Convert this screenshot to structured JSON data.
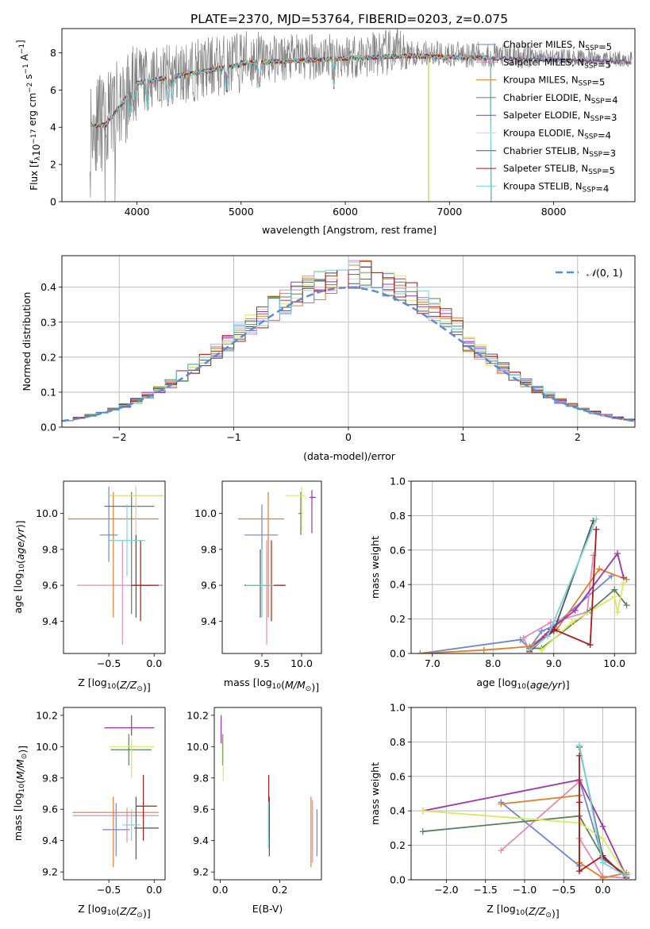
{
  "title": "PLATE=2370, MJD=53764, FIBERID=0203, z=0.075",
  "chart_data": [
    {
      "id": "spectrum",
      "type": "line",
      "xlabel": "wavelength [Angstrom, rest frame]",
      "ylabel": "Flux [f_λ 10^-17 erg cm^-2 s^-1 A^-1]",
      "xlim": [
        3280,
        8780
      ],
      "ylim": [
        0,
        9.3
      ],
      "xticks": [
        4000,
        5000,
        6000,
        7000,
        8000
      ],
      "yticks": [
        0,
        2,
        4,
        6,
        8
      ],
      "grid": false,
      "legend": "top-right",
      "observed": {
        "color": "#808080",
        "x_start": 3550,
        "x_end": 8750,
        "level": 7.8
      },
      "series": [
        {
          "name": "Chabrier MILES, N_SSP=5",
          "color": "#6f86d6",
          "x_end": 8750
        },
        {
          "name": "Salpeter MILES, N_SSP=5",
          "color": "#e28ab8",
          "x_end": 8750
        },
        {
          "name": "Kroupa MILES, N_SSP=5",
          "color": "#e47d25",
          "x_end": 7400
        },
        {
          "name": "Chabrier ELODIE, N_SSP=4",
          "color": "#5b8060",
          "x_end": 6800
        },
        {
          "name": "Salpeter ELODIE, N_SSP=3",
          "color": "#9b34ad",
          "x_end": 6800
        },
        {
          "name": "Kroupa ELODIE, N_SSP=4",
          "color": "#d9ea5a",
          "x_end": 6800
        },
        {
          "name": "Chabrier STELIB, N_SSP=3",
          "color": "#555555",
          "x_end": 8750
        },
        {
          "name": "Salpeter STELIB, N_SSP=5",
          "color": "#b01818",
          "x_end": 7400
        },
        {
          "name": "Kroupa STELIB, N_SSP=4",
          "color": "#77d4dc",
          "x_end": 7400
        }
      ]
    },
    {
      "id": "residuals",
      "type": "step",
      "xlabel": "(data-model)/error",
      "ylabel": "Normed distribution",
      "xlim": [
        -2.5,
        2.5
      ],
      "ylim": [
        0,
        0.49
      ],
      "xticks": [
        -2,
        -1,
        0,
        1,
        2
      ],
      "yticks": [
        0.0,
        0.1,
        0.2,
        0.3,
        0.4
      ],
      "grid": true,
      "legend": "top-right",
      "reference": {
        "name": "N(0,1)",
        "color": "#5b8bd6",
        "style": "dashed"
      },
      "bin_width": 0.1,
      "mean_profile": "gaussian"
    },
    {
      "id": "z-age",
      "type": "errorbar",
      "xlabel": "Z [log10(Z/Z⊙)]",
      "ylabel": "age [log10(age/yr)]",
      "xlim": [
        -1.0,
        0.12
      ],
      "ylim": [
        9.22,
        10.18
      ],
      "xticks": [
        -0.5,
        0.0
      ],
      "yticks": [
        9.4,
        9.6,
        9.8,
        10.0
      ],
      "grid": false,
      "points": [
        {
          "color": "#6f86d6",
          "x": -0.5,
          "xerr": [
            0.1,
            0.1
          ],
          "y": 9.88,
          "yerr": [
            0.15,
            0.27
          ]
        },
        {
          "color": "#e28ab8",
          "x": -0.35,
          "xerr": [
            0.5,
            0.45
          ],
          "y": 9.6,
          "yerr": [
            0.33,
            0.25
          ]
        },
        {
          "color": "#e47d25",
          "x": -0.45,
          "xerr": [
            0.5,
            0.5
          ],
          "y": 9.97,
          "yerr": [
            0.55,
            0.15
          ]
        },
        {
          "color": "#5b8060",
          "x": -0.25,
          "xerr": [
            0.3,
            0.25
          ],
          "y": 10.04,
          "yerr": [
            0.6,
            0.08
          ]
        },
        {
          "color": "#9b34ad",
          "x": -0.2,
          "xerr": [
            0.3,
            0.3
          ],
          "y": 10.1,
          "yerr": [
            0.5,
            0.05
          ]
        },
        {
          "color": "#d9ea5a",
          "x": -0.2,
          "xerr": [
            0.3,
            0.3
          ],
          "y": 10.1,
          "yerr": [
            0.5,
            0.05
          ]
        },
        {
          "color": "#555555",
          "x": -0.2,
          "xerr": [
            0.05,
            0.2
          ],
          "y": 9.6,
          "yerr": [
            0.18,
            0.28
          ]
        },
        {
          "color": "#b01818",
          "x": -0.15,
          "xerr": [
            0.1,
            0.2
          ],
          "y": 9.6,
          "yerr": [
            0.2,
            0.25
          ]
        },
        {
          "color": "#77d4dc",
          "x": -0.3,
          "xerr": [
            0.2,
            0.2
          ],
          "y": 9.85,
          "yerr": [
            0.2,
            0.2
          ]
        }
      ]
    },
    {
      "id": "mass-age",
      "type": "errorbar",
      "xlabel": "mass [log10(M/M⊙)]",
      "ylabel": "",
      "xlim": [
        9.0,
        10.25
      ],
      "ylim": [
        9.22,
        10.18
      ],
      "xticks": [
        9.5,
        10.0
      ],
      "yticks": [
        9.4,
        9.6,
        9.8,
        10.0
      ],
      "grid": false,
      "points": [
        {
          "color": "#6f86d6",
          "x": 9.5,
          "xerr": [
            0.22,
            0.2
          ],
          "y": 9.88,
          "yerr": [
            0.45,
            0.17
          ]
        },
        {
          "color": "#e28ab8",
          "x": 9.56,
          "xerr": [
            0.22,
            0.05
          ],
          "y": 9.6,
          "yerr": [
            0.33,
            0.25
          ]
        },
        {
          "color": "#e47d25",
          "x": 9.58,
          "xerr": [
            0.38,
            0.2
          ],
          "y": 9.97,
          "yerr": [
            0.55,
            0.15
          ]
        },
        {
          "color": "#5b8060",
          "x": 9.99,
          "xerr": [
            0.03,
            0.02
          ],
          "y": 10.0,
          "yerr": [
            0.12,
            0.12
          ]
        },
        {
          "color": "#9b34ad",
          "x": 10.13,
          "xerr": [
            0.03,
            0.05
          ],
          "y": 10.09,
          "yerr": [
            0.2,
            0.04
          ]
        },
        {
          "color": "#d9ea5a",
          "x": 10.0,
          "xerr": [
            0.2,
            0.05
          ],
          "y": 10.1,
          "yerr": [
            0.2,
            0.05
          ]
        },
        {
          "color": "#555555",
          "x": 9.48,
          "xerr": [
            0.2,
            0.3
          ],
          "y": 9.6,
          "yerr": [
            0.18,
            0.2
          ]
        },
        {
          "color": "#b01818",
          "x": 9.62,
          "xerr": [
            0.3,
            0.18
          ],
          "y": 9.6,
          "yerr": [
            0.2,
            0.25
          ]
        },
        {
          "color": "#77d4dc",
          "x": 9.5,
          "xerr": [
            0.2,
            0.15
          ],
          "y": 9.6,
          "yerr": [
            0.18,
            0.2
          ]
        }
      ]
    },
    {
      "id": "weight-age",
      "type": "line",
      "xlabel": "age [log10(age/yr)]",
      "ylabel": "mass weight",
      "xlim": [
        6.65,
        10.35
      ],
      "ylim": [
        0,
        1.0
      ],
      "xticks": [
        7,
        8,
        9,
        10
      ],
      "yticks": [
        0.0,
        0.2,
        0.4,
        0.6,
        0.8,
        1.0
      ],
      "grid": true,
      "series": [
        {
          "color": "#6f86d6",
          "x": [
            6.8,
            8.45,
            8.6,
            8.8,
            9.0,
            9.95
          ],
          "y": [
            0.0,
            0.08,
            0.03,
            0.13,
            0.16,
            0.45
          ]
        },
        {
          "color": "#e28ab8",
          "x": [
            8.6,
            8.5,
            8.95,
            9.55,
            9.65
          ],
          "y": [
            0.02,
            0.09,
            0.18,
            0.24,
            0.57
          ]
        },
        {
          "color": "#e47d25",
          "x": [
            6.8,
            7.85,
            8.6,
            8.85,
            9.05,
            9.75,
            10.2
          ],
          "y": [
            0.0,
            0.02,
            0.04,
            0.1,
            0.14,
            0.49,
            0.43
          ]
        },
        {
          "color": "#5b8060",
          "x": [
            8.6,
            8.8,
            9.6,
            10.0,
            10.2
          ],
          "y": [
            0.03,
            0.03,
            0.25,
            0.37,
            0.28
          ]
        },
        {
          "color": "#9b34ad",
          "x": [
            8.6,
            8.95,
            9.35,
            10.05,
            10.15
          ],
          "y": [
            0.02,
            0.14,
            0.25,
            0.58,
            0.44
          ]
        },
        {
          "color": "#d9ea5a",
          "x": [
            8.8,
            9.3,
            10.0,
            10.05,
            10.15
          ],
          "y": [
            0.02,
            0.18,
            0.33,
            0.24,
            0.41
          ]
        },
        {
          "color": "#555555",
          "x": [
            8.6,
            9.0,
            9.65
          ],
          "y": [
            0.02,
            0.13,
            0.77
          ]
        },
        {
          "color": "#b01818",
          "x": [
            8.6,
            9.0,
            9.6,
            9.7
          ],
          "y": [
            0.01,
            0.14,
            0.05,
            0.72
          ]
        },
        {
          "color": "#77d4dc",
          "x": [
            8.6,
            8.9,
            9.7
          ],
          "y": [
            0.02,
            0.1,
            0.78
          ]
        }
      ]
    },
    {
      "id": "z-mass",
      "type": "errorbar",
      "xlabel": "Z [log10(Z/Z⊙)]",
      "ylabel": "mass [log10(M/M⊙)]",
      "xlim": [
        -1.0,
        0.12
      ],
      "ylim": [
        9.15,
        10.25
      ],
      "xticks": [
        -0.5,
        0.0
      ],
      "yticks": [
        9.2,
        9.4,
        9.6,
        9.8,
        10.0,
        10.2
      ],
      "grid": false,
      "points": [
        {
          "color": "#6f86d6",
          "x": -0.42,
          "xerr": [
            0.15,
            0.15
          ],
          "y": 9.47,
          "yerr": [
            0.17,
            0.17
          ]
        },
        {
          "color": "#e28ab8",
          "x": -0.3,
          "xerr": [
            0.6,
            0.35
          ],
          "y": 9.56,
          "yerr": [
            0.17,
            0.05
          ]
        },
        {
          "color": "#e47d25",
          "x": -0.45,
          "xerr": [
            0.45,
            0.5
          ],
          "y": 9.58,
          "yerr": [
            0.35,
            0.1
          ]
        },
        {
          "color": "#5b8060",
          "x": -0.28,
          "xerr": [
            0.2,
            0.25
          ],
          "y": 9.98,
          "yerr": [
            0.1,
            0.1
          ]
        },
        {
          "color": "#9b34ad",
          "x": -0.25,
          "xerr": [
            0.3,
            0.25
          ],
          "y": 10.12,
          "yerr": [
            0.05,
            0.08
          ]
        },
        {
          "color": "#d9ea5a",
          "x": -0.25,
          "xerr": [
            0.25,
            0.25
          ],
          "y": 10.0,
          "yerr": [
            0.2,
            0.05
          ]
        },
        {
          "color": "#555555",
          "x": -0.2,
          "xerr": [
            0.02,
            0.25
          ],
          "y": 9.48,
          "yerr": [
            0.2,
            0.2
          ]
        },
        {
          "color": "#b01818",
          "x": -0.12,
          "xerr": [
            0.08,
            0.15
          ],
          "y": 9.62,
          "yerr": [
            0.22,
            0.2
          ]
        },
        {
          "color": "#77d4dc",
          "x": -0.25,
          "xerr": [
            0.1,
            0.1
          ],
          "y": 9.5,
          "yerr": [
            0.1,
            0.1
          ]
        }
      ]
    },
    {
      "id": "ebv-mass",
      "type": "errorbar",
      "xlabel": "E(B-V)",
      "ylabel": "",
      "xlim": [
        -0.02,
        0.34
      ],
      "ylim": [
        9.15,
        10.25
      ],
      "xticks": [
        0.0,
        0.2
      ],
      "yticks": [
        9.2,
        9.4,
        9.6,
        9.8,
        10.0,
        10.2
      ],
      "grid": false,
      "points": [
        {
          "color": "#6f86d6",
          "x": 0.325,
          "y": 9.47,
          "yerr": [
            0.17,
            0.13
          ]
        },
        {
          "color": "#e28ab8",
          "x": 0.31,
          "y": 9.56,
          "yerr": [
            0.3,
            0.1
          ]
        },
        {
          "color": "#e47d25",
          "x": 0.305,
          "y": 9.58,
          "yerr": [
            0.35,
            0.1
          ]
        },
        {
          "color": "#5b8060",
          "x": 0.008,
          "y": 9.98,
          "yerr": [
            0.1,
            0.1
          ]
        },
        {
          "color": "#9b34ad",
          "x": 0.003,
          "y": 10.12,
          "yerr": [
            0.1,
            0.08
          ]
        },
        {
          "color": "#d9ea5a",
          "x": 0.01,
          "y": 10.0,
          "yerr": [
            0.22,
            0.08
          ]
        },
        {
          "color": "#555555",
          "x": 0.165,
          "y": 9.48,
          "yerr": [
            0.18,
            0.2
          ]
        },
        {
          "color": "#b01818",
          "x": 0.163,
          "y": 9.62,
          "yerr": [
            0.2,
            0.2
          ]
        },
        {
          "color": "#77d4dc",
          "x": 0.162,
          "y": 9.5,
          "yerr": [
            0.15,
            0.15
          ]
        }
      ]
    },
    {
      "id": "weight-z",
      "type": "line",
      "xlabel": "Z [log10(Z/Z⊙)]",
      "ylabel": "mass weight",
      "xlim": [
        -2.45,
        0.42
      ],
      "ylim": [
        0,
        1.0
      ],
      "xticks": [
        -2.0,
        -1.5,
        -1.0,
        -0.5,
        0.0
      ],
      "yticks": [
        0.0,
        0.2,
        0.4,
        0.6,
        0.8,
        1.0
      ],
      "grid": true,
      "series": [
        {
          "color": "#6f86d6",
          "x": [
            -1.3,
            -0.3,
            -0.3,
            0.0,
            0.3
          ],
          "y": [
            0.45,
            0.08,
            0.58,
            0.12,
            0.03
          ]
        },
        {
          "color": "#e28ab8",
          "x": [
            -1.3,
            -0.3,
            -0.3,
            0.0,
            0.3
          ],
          "y": [
            0.17,
            0.57,
            0.24,
            0.02,
            0.01
          ]
        },
        {
          "color": "#e47d25",
          "x": [
            -1.3,
            -0.3,
            -0.3,
            0.0,
            0.3
          ],
          "y": [
            0.44,
            0.49,
            0.1,
            0.01,
            0.04
          ]
        },
        {
          "color": "#5b8060",
          "x": [
            -2.3,
            -0.3,
            0.0,
            0.3
          ],
          "y": [
            0.28,
            0.37,
            0.13,
            0.02
          ]
        },
        {
          "color": "#9b34ad",
          "x": [
            -2.3,
            -0.3,
            0.0,
            0.3
          ],
          "y": [
            0.4,
            0.58,
            0.31,
            0.02
          ]
        },
        {
          "color": "#d9ea5a",
          "x": [
            -2.3,
            -0.3,
            0.0,
            0.3
          ],
          "y": [
            0.4,
            0.33,
            0.24,
            0.02
          ]
        },
        {
          "color": "#555555",
          "x": [
            -0.3,
            0.0,
            0.3
          ],
          "y": [
            0.77,
            0.13,
            0.02
          ]
        },
        {
          "color": "#b01818",
          "x": [
            -0.3,
            -0.3,
            -0.3,
            0.0,
            0.3
          ],
          "y": [
            0.72,
            0.45,
            0.05,
            0.14,
            0.01
          ]
        },
        {
          "color": "#77d4dc",
          "x": [
            -0.3,
            0.0,
            0.3
          ],
          "y": [
            0.78,
            0.1,
            0.02
          ]
        }
      ]
    }
  ]
}
